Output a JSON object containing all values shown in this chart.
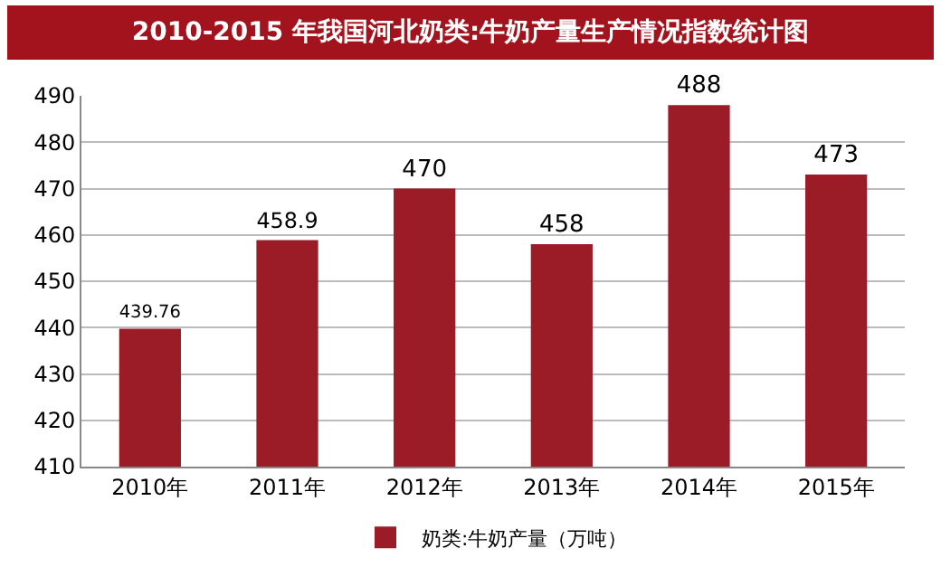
{
  "chart_data": {
    "type": "bar",
    "title": "2010-2015 年我国河北奶类:牛奶产量生产情况指数统计图",
    "categories": [
      "2010年",
      "2011年",
      "2012年",
      "2013年",
      "2014年",
      "2015年"
    ],
    "series": [
      {
        "name": "奶类:牛奶产量（万吨）",
        "color": "#9b1b27",
        "values": [
          439.76,
          458.9,
          470,
          458,
          488,
          473
        ]
      }
    ],
    "ylim": [
      410,
      490
    ],
    "yticks": [
      410,
      420,
      430,
      440,
      450,
      460,
      470,
      480,
      490
    ],
    "grid": "y",
    "legend": "bottom",
    "data_labels": true
  }
}
